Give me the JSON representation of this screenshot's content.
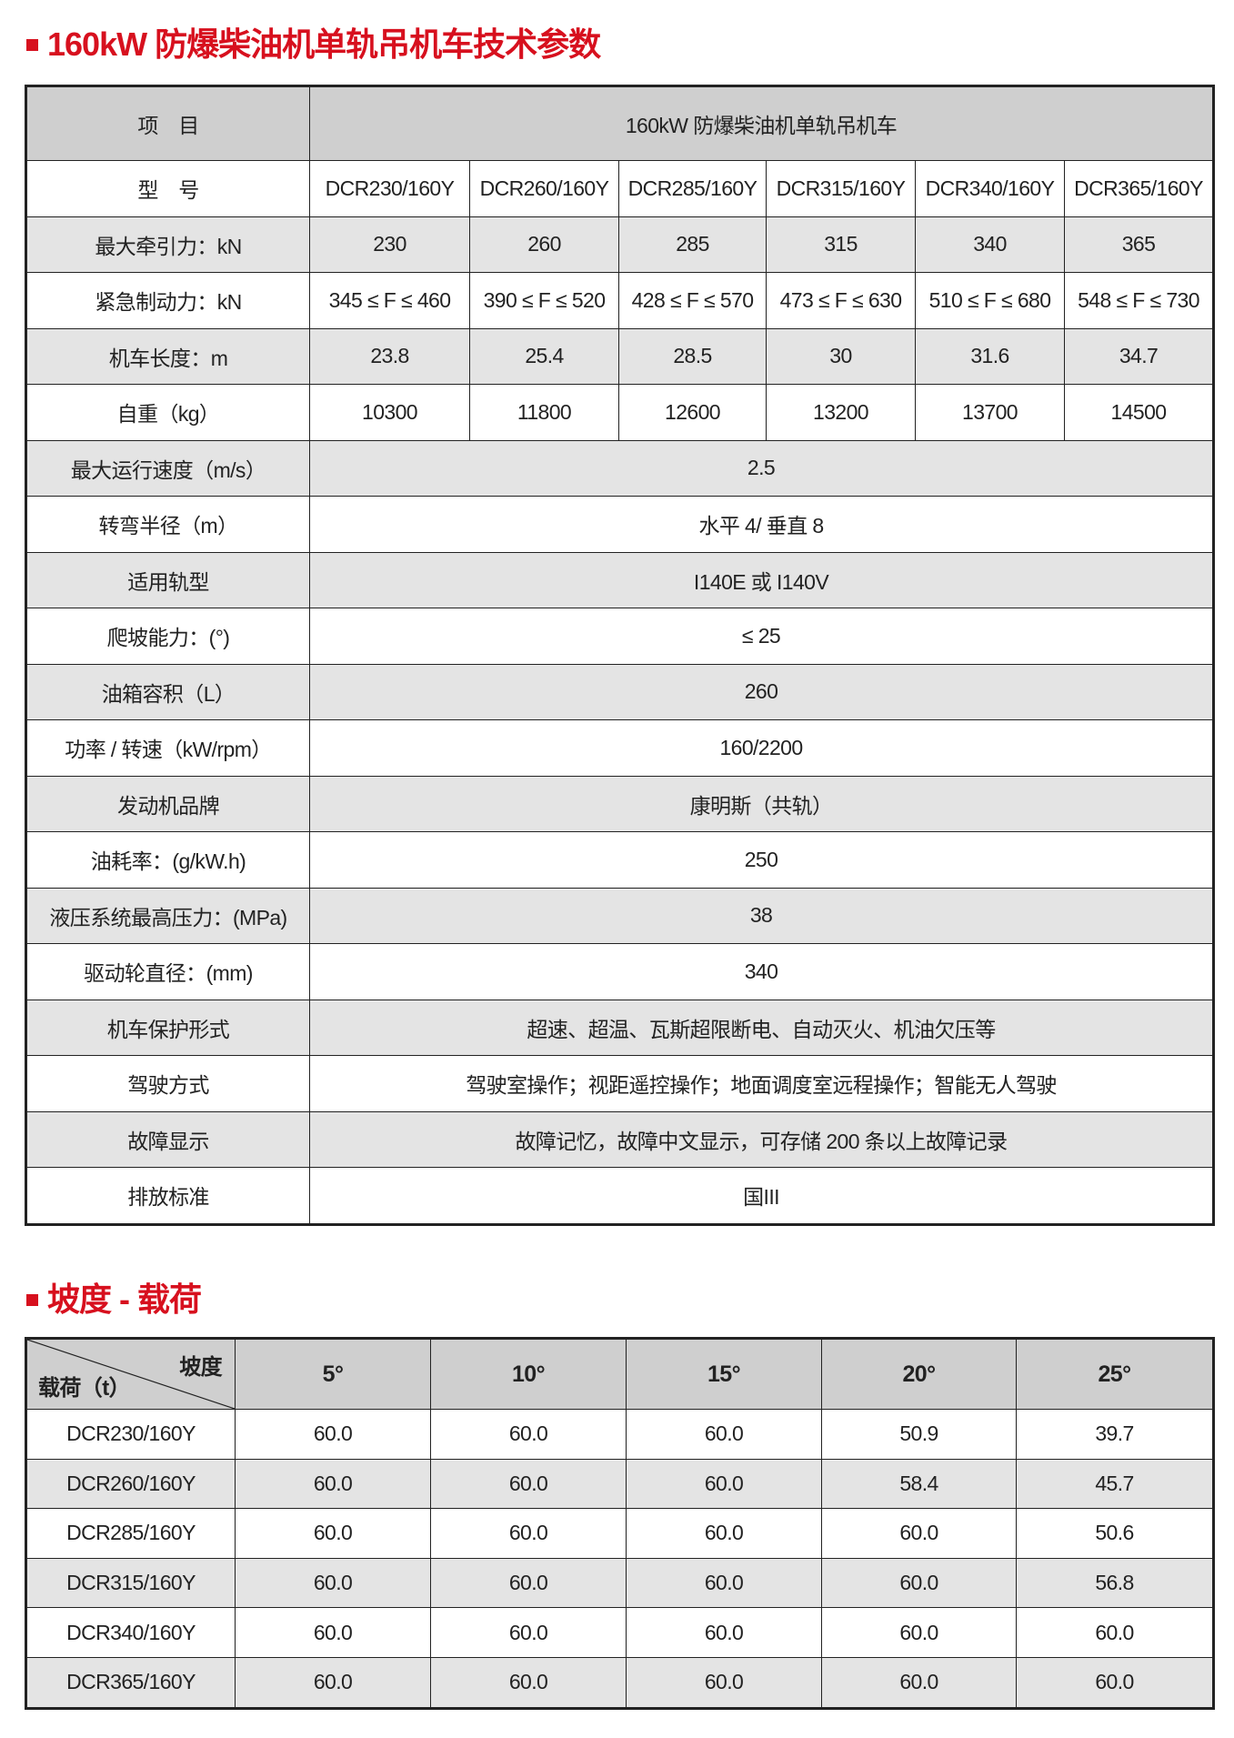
{
  "spec_section": {
    "title": "160kW 防爆柴油机单轨吊机车技术参数",
    "header": {
      "item_label": "项　目",
      "product_label": "160kW 防爆柴油机单轨吊机车"
    },
    "per_model_rows": [
      {
        "label": "型　号",
        "values": [
          "DCR230/160Y",
          "DCR260/160Y",
          "DCR285/160Y",
          "DCR315/160Y",
          "DCR340/160Y",
          "DCR365/160Y"
        ]
      },
      {
        "label": "最大牵引力：kN",
        "values": [
          "230",
          "260",
          "285",
          "315",
          "340",
          "365"
        ]
      },
      {
        "label": "紧急制动力：kN",
        "values": [
          "345 ≤ F ≤ 460",
          "390 ≤ F ≤ 520",
          "428 ≤ F ≤ 570",
          "473 ≤ F ≤ 630",
          "510 ≤ F ≤ 680",
          "548 ≤ F ≤ 730"
        ]
      },
      {
        "label": "机车长度：m",
        "values": [
          "23.8",
          "25.4",
          "28.5",
          "30",
          "31.6",
          "34.7"
        ]
      },
      {
        "label": "自重（kg）",
        "values": [
          "10300",
          "11800",
          "12600",
          "13200",
          "13700",
          "14500"
        ]
      }
    ],
    "shared_rows": [
      {
        "label": "最大运行速度（m/s）",
        "value": "2.5"
      },
      {
        "label": "转弯半径（m）",
        "value": "水平 4/ 垂直 8"
      },
      {
        "label": "适用轨型",
        "value": "I140E 或 I140V"
      },
      {
        "label": "爬坡能力：(°)",
        "value": "≤ 25"
      },
      {
        "label": "油箱容积（L）",
        "value": "260"
      },
      {
        "label": "功率 / 转速（kW/rpm）",
        "value": "160/2200"
      },
      {
        "label": "发动机品牌",
        "value": "康明斯（共轨）"
      },
      {
        "label": "油耗率：(g/kW.h)",
        "value": "250"
      },
      {
        "label": "液压系统最高压力：(MPa)",
        "value": "38"
      },
      {
        "label": "驱动轮直径：(mm)",
        "value": "340"
      },
      {
        "label": "机车保护形式",
        "value": "超速、超温、瓦斯超限断电、自动灭火、机油欠压等"
      },
      {
        "label": "驾驶方式",
        "value": "驾驶室操作；视距遥控操作；地面调度室远程操作；智能无人驾驶"
      },
      {
        "label": "故障显示",
        "value": "故障记忆，故障中文显示，可存储 200 条以上故障记录"
      },
      {
        "label": "排放标准",
        "value": "国III"
      }
    ]
  },
  "grade_section": {
    "title": "坡度 - 载荷",
    "corner_top": "坡度",
    "corner_bottom": "载荷（t）",
    "grades": [
      "5°",
      "10°",
      "15°",
      "20°",
      "25°"
    ],
    "rows": [
      {
        "model": "DCR230/160Y",
        "values": [
          "60.0",
          "60.0",
          "60.0",
          "50.9",
          "39.7"
        ]
      },
      {
        "model": "DCR260/160Y",
        "values": [
          "60.0",
          "60.0",
          "60.0",
          "58.4",
          "45.7"
        ]
      },
      {
        "model": "DCR285/160Y",
        "values": [
          "60.0",
          "60.0",
          "60.0",
          "60.0",
          "50.6"
        ]
      },
      {
        "model": "DCR315/160Y",
        "values": [
          "60.0",
          "60.0",
          "60.0",
          "60.0",
          "56.8"
        ]
      },
      {
        "model": "DCR340/160Y",
        "values": [
          "60.0",
          "60.0",
          "60.0",
          "60.0",
          "60.0"
        ]
      },
      {
        "model": "DCR365/160Y",
        "values": [
          "60.0",
          "60.0",
          "60.0",
          "60.0",
          "60.0"
        ]
      }
    ]
  },
  "colors": {
    "accent": "#d7101e",
    "header_bg": "#cfcfcf",
    "row_alt_bg": "#e4e4e4"
  }
}
